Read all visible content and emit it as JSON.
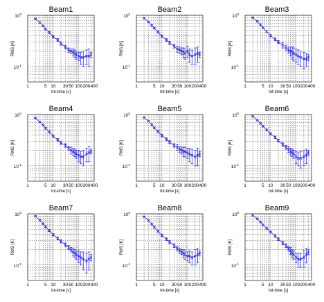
{
  "figure": {
    "x_ticks": [
      "1",
      "5",
      "10",
      "30",
      "50",
      "100",
      "200",
      "400"
    ],
    "y_ticks": [
      "10",
      "10"
    ],
    "y_tick_exponents": [
      "0",
      "-1"
    ],
    "xlabel": "Int-time [s]",
    "ylabel": "RMS [K]",
    "series_color": "#2b2bd9"
  },
  "chart_data": [
    {
      "type": "line",
      "title": "Beam1",
      "xlabel": "Int-time [s]",
      "ylabel": "RMS [K]",
      "x_scale": "log",
      "y_scale": "log",
      "xlim": [
        1,
        400
      ],
      "ylim": [
        0.05,
        1
      ],
      "grid": true,
      "x": [
        2,
        3,
        4,
        5,
        7,
        10,
        15,
        20,
        30,
        40,
        50,
        60,
        70,
        80,
        100,
        120,
        150,
        200,
        250,
        300
      ],
      "y": [
        0.85,
        0.72,
        0.62,
        0.54,
        0.46,
        0.38,
        0.33,
        0.28,
        0.24,
        0.21,
        0.2,
        0.19,
        0.18,
        0.17,
        0.16,
        0.15,
        0.15,
        0.16,
        0.16,
        0.17
      ],
      "err": [
        0.02,
        0.02,
        0.02,
        0.02,
        0.02,
        0.02,
        0.02,
        0.02,
        0.02,
        0.02,
        0.02,
        0.03,
        0.03,
        0.03,
        0.03,
        0.04,
        0.05,
        0.05,
        0.06,
        0.02
      ]
    },
    {
      "type": "line",
      "title": "Beam2",
      "xlabel": "Int-time [s]",
      "ylabel": "RMS [K]",
      "x_scale": "log",
      "y_scale": "log",
      "xlim": [
        1,
        400
      ],
      "ylim": [
        0.05,
        1
      ],
      "grid": true,
      "x": [
        2,
        3,
        4,
        5,
        7,
        10,
        15,
        20,
        30,
        40,
        50,
        60,
        70,
        80,
        100,
        120,
        150,
        200,
        250,
        300
      ],
      "y": [
        0.88,
        0.74,
        0.63,
        0.56,
        0.47,
        0.39,
        0.33,
        0.29,
        0.25,
        0.22,
        0.21,
        0.2,
        0.19,
        0.18,
        0.2,
        0.17,
        0.16,
        0.17,
        0.18,
        0.17
      ],
      "err": [
        0.02,
        0.02,
        0.02,
        0.02,
        0.02,
        0.02,
        0.02,
        0.02,
        0.02,
        0.03,
        0.03,
        0.03,
        0.04,
        0.04,
        0.05,
        0.05,
        0.05,
        0.06,
        0.06,
        0.02
      ]
    },
    {
      "type": "line",
      "title": "Beam3",
      "xlabel": "Int-time [s]",
      "ylabel": "RMS [K]",
      "x_scale": "log",
      "y_scale": "log",
      "xlim": [
        1,
        400
      ],
      "ylim": [
        0.05,
        1
      ],
      "grid": true,
      "x": [
        2,
        3,
        4,
        5,
        7,
        10,
        15,
        20,
        30,
        40,
        50,
        60,
        70,
        80,
        100,
        120,
        150,
        200,
        250,
        300
      ],
      "y": [
        0.9,
        0.76,
        0.65,
        0.57,
        0.48,
        0.4,
        0.34,
        0.3,
        0.26,
        0.23,
        0.21,
        0.2,
        0.19,
        0.18,
        0.17,
        0.16,
        0.15,
        0.14,
        0.14,
        0.15
      ],
      "err": [
        0.02,
        0.02,
        0.02,
        0.02,
        0.02,
        0.02,
        0.02,
        0.02,
        0.03,
        0.03,
        0.03,
        0.04,
        0.05,
        0.05,
        0.05,
        0.05,
        0.05,
        0.05,
        0.04,
        0.02
      ]
    },
    {
      "type": "line",
      "title": "Beam4",
      "xlabel": "Int-time [s]",
      "ylabel": "RMS [K]",
      "x_scale": "log",
      "y_scale": "log",
      "xlim": [
        1,
        400
      ],
      "ylim": [
        0.05,
        1
      ],
      "grid": true,
      "x": [
        2,
        3,
        4,
        5,
        7,
        10,
        15,
        20,
        30,
        40,
        50,
        60,
        70,
        80,
        100,
        120,
        150,
        200,
        250,
        300
      ],
      "y": [
        0.86,
        0.72,
        0.62,
        0.54,
        0.46,
        0.38,
        0.32,
        0.28,
        0.25,
        0.22,
        0.2,
        0.19,
        0.18,
        0.17,
        0.16,
        0.15,
        0.15,
        0.17,
        0.18,
        0.19
      ],
      "err": [
        0.02,
        0.02,
        0.02,
        0.02,
        0.02,
        0.02,
        0.02,
        0.02,
        0.02,
        0.02,
        0.03,
        0.03,
        0.03,
        0.03,
        0.04,
        0.04,
        0.05,
        0.05,
        0.06,
        0.02
      ]
    },
    {
      "type": "line",
      "title": "Beam5",
      "xlabel": "Int-time [s]",
      "ylabel": "RMS [K]",
      "x_scale": "log",
      "y_scale": "log",
      "xlim": [
        1,
        400
      ],
      "ylim": [
        0.05,
        1
      ],
      "grid": true,
      "x": [
        2,
        3,
        4,
        5,
        7,
        10,
        15,
        20,
        30,
        40,
        50,
        60,
        70,
        80,
        100,
        120,
        150,
        200,
        250,
        300
      ],
      "y": [
        0.88,
        0.74,
        0.63,
        0.55,
        0.47,
        0.39,
        0.33,
        0.29,
        0.25,
        0.23,
        0.21,
        0.2,
        0.19,
        0.19,
        0.18,
        0.17,
        0.16,
        0.15,
        0.16,
        0.17
      ],
      "err": [
        0.02,
        0.02,
        0.02,
        0.02,
        0.02,
        0.02,
        0.02,
        0.02,
        0.02,
        0.03,
        0.03,
        0.03,
        0.04,
        0.04,
        0.04,
        0.05,
        0.05,
        0.05,
        0.06,
        0.02
      ]
    },
    {
      "type": "line",
      "title": "Beam6",
      "xlabel": "Int-time [s]",
      "ylabel": "RMS [K]",
      "x_scale": "log",
      "y_scale": "log",
      "xlim": [
        1,
        400
      ],
      "ylim": [
        0.05,
        1
      ],
      "grid": true,
      "x": [
        2,
        3,
        4,
        5,
        7,
        10,
        15,
        20,
        30,
        40,
        50,
        60,
        70,
        80,
        100,
        120,
        150,
        200,
        250,
        300
      ],
      "y": [
        0.92,
        0.78,
        0.67,
        0.59,
        0.5,
        0.42,
        0.36,
        0.31,
        0.26,
        0.23,
        0.21,
        0.19,
        0.18,
        0.17,
        0.15,
        0.14,
        0.14,
        0.15,
        0.16,
        0.18
      ],
      "err": [
        0.02,
        0.02,
        0.02,
        0.02,
        0.02,
        0.02,
        0.02,
        0.02,
        0.02,
        0.02,
        0.03,
        0.03,
        0.03,
        0.03,
        0.04,
        0.04,
        0.05,
        0.05,
        0.05,
        0.02
      ]
    },
    {
      "type": "line",
      "title": "Beam7",
      "xlabel": "Int-time [s]",
      "ylabel": "RMS [K]",
      "x_scale": "log",
      "y_scale": "log",
      "xlim": [
        1,
        400
      ],
      "ylim": [
        0.05,
        1
      ],
      "grid": true,
      "x": [
        2,
        3,
        4,
        5,
        7,
        10,
        15,
        20,
        30,
        40,
        50,
        60,
        70,
        80,
        100,
        120,
        150,
        200,
        250,
        300
      ],
      "y": [
        0.9,
        0.75,
        0.64,
        0.56,
        0.47,
        0.39,
        0.33,
        0.29,
        0.25,
        0.22,
        0.2,
        0.18,
        0.17,
        0.16,
        0.15,
        0.14,
        0.13,
        0.12,
        0.13,
        0.14
      ],
      "err": [
        0.02,
        0.02,
        0.02,
        0.02,
        0.02,
        0.02,
        0.02,
        0.02,
        0.02,
        0.02,
        0.02,
        0.03,
        0.03,
        0.03,
        0.04,
        0.04,
        0.05,
        0.05,
        0.05,
        0.02
      ]
    },
    {
      "type": "line",
      "title": "Beam8",
      "xlabel": "Int-time [s]",
      "ylabel": "RMS [K]",
      "x_scale": "log",
      "y_scale": "log",
      "xlim": [
        1,
        400
      ],
      "ylim": [
        0.05,
        1
      ],
      "grid": true,
      "x": [
        2,
        3,
        4,
        5,
        7,
        10,
        15,
        20,
        30,
        40,
        50,
        60,
        70,
        80,
        100,
        120,
        150,
        200,
        250,
        300
      ],
      "y": [
        0.88,
        0.74,
        0.63,
        0.55,
        0.46,
        0.38,
        0.32,
        0.28,
        0.24,
        0.21,
        0.19,
        0.18,
        0.17,
        0.16,
        0.15,
        0.15,
        0.14,
        0.15,
        0.16,
        0.17
      ],
      "err": [
        0.02,
        0.02,
        0.02,
        0.02,
        0.02,
        0.02,
        0.02,
        0.02,
        0.02,
        0.02,
        0.02,
        0.02,
        0.03,
        0.03,
        0.03,
        0.04,
        0.04,
        0.05,
        0.05,
        0.02
      ]
    },
    {
      "type": "line",
      "title": "Beam9",
      "xlabel": "Int-time [s]",
      "ylabel": "RMS [K]",
      "x_scale": "log",
      "y_scale": "log",
      "xlim": [
        1,
        400
      ],
      "ylim": [
        0.05,
        1
      ],
      "grid": true,
      "x": [
        2,
        3,
        4,
        5,
        7,
        10,
        15,
        20,
        30,
        40,
        50,
        60,
        70,
        80,
        100,
        120,
        150,
        200,
        250,
        300
      ],
      "y": [
        0.93,
        0.8,
        0.69,
        0.61,
        0.52,
        0.44,
        0.37,
        0.32,
        0.27,
        0.24,
        0.21,
        0.19,
        0.17,
        0.16,
        0.14,
        0.13,
        0.13,
        0.14,
        0.16,
        0.18
      ],
      "err": [
        0.02,
        0.02,
        0.02,
        0.02,
        0.02,
        0.02,
        0.02,
        0.02,
        0.02,
        0.02,
        0.02,
        0.03,
        0.03,
        0.03,
        0.03,
        0.04,
        0.04,
        0.05,
        0.05,
        0.02
      ]
    }
  ]
}
